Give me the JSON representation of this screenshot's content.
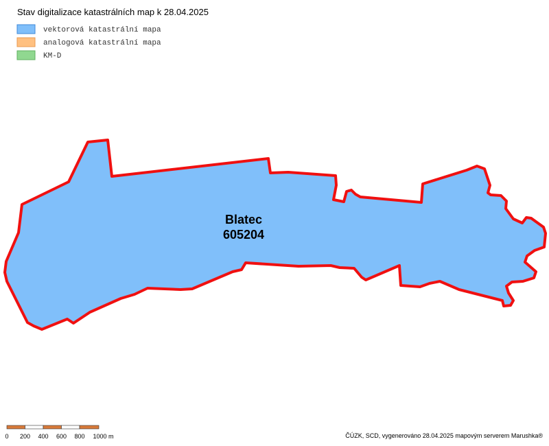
{
  "header": {
    "title": "Stav digitalizace katastrálních map k 28.04.2025"
  },
  "legend": [
    {
      "label": "vektorová katastrální mapa",
      "color": "#80bffa",
      "border": "#3f88d8"
    },
    {
      "label": "analogová katastrální mapa",
      "color": "#ffc080",
      "border": "#e89a50"
    },
    {
      "label": "KM-D",
      "color": "#90d890",
      "border": "#60b060"
    }
  ],
  "area": {
    "name": "Blatec",
    "code": "605204"
  },
  "scale_bar": {
    "labels": [
      "0",
      "200",
      "400",
      "600",
      "800",
      "1000 m"
    ]
  },
  "footer": {
    "credit": "ČÚZK, SCD, vygenerováno 28.04.2025 mapovým serverem Marushka®"
  }
}
